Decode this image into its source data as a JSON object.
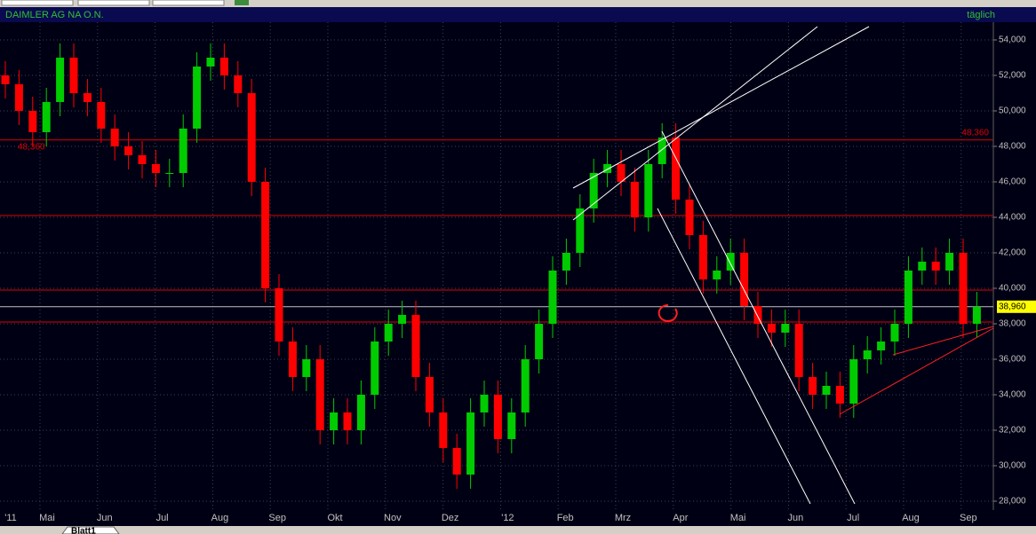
{
  "chart_data": {
    "type": "candlestick",
    "title": "DAIMLER AG NA O.N.",
    "subtitle": "täglich",
    "categories": [
      "'11",
      "Mai",
      "Jun",
      "Jul",
      "Aug",
      "Sep",
      "Okt",
      "Nov",
      "Dez",
      "'12",
      "Feb",
      "Mrz",
      "Apr",
      "Mai",
      "Jun",
      "Jul",
      "Aug",
      "Sep"
    ],
    "open": [
      52,
      51.5,
      50,
      48.8,
      50.5,
      53,
      51,
      50.5,
      49,
      48,
      47.5,
      47,
      46.5,
      46.5,
      49,
      52.5,
      53,
      52,
      51,
      46,
      40,
      37,
      35,
      36,
      32,
      33,
      32,
      34,
      37,
      38,
      38.5,
      35,
      33,
      31,
      29.5,
      33,
      34,
      31.5,
      33,
      36,
      38,
      41,
      42,
      44.5,
      46.5,
      47,
      46,
      44,
      47,
      48.5,
      45,
      43,
      40.5,
      41,
      42,
      39,
      38,
      37.5,
      38,
      35,
      34,
      34.5,
      33.5,
      36,
      36.5,
      37,
      38,
      41,
      41.5,
      41,
      42,
      38
    ],
    "high": [
      52.8,
      52.3,
      50.8,
      51.3,
      53.8,
      53.8,
      51.8,
      51.3,
      49.8,
      48.8,
      48.3,
      47.8,
      47.3,
      49.8,
      53.3,
      53.8,
      53.8,
      52.8,
      51.8,
      46.8,
      40.8,
      37.8,
      36.8,
      36.8,
      33.8,
      33.8,
      34.8,
      37.8,
      38.8,
      39.3,
      39.3,
      35.8,
      33.8,
      31.8,
      33.8,
      34.8,
      34.8,
      33.8,
      36.8,
      38.8,
      41.8,
      42.8,
      45.3,
      47.3,
      47.8,
      47.8,
      46.8,
      47.8,
      49.3,
      49.3,
      45.8,
      43.8,
      41.8,
      42.8,
      42.8,
      39.8,
      38.8,
      38.8,
      38.8,
      35.8,
      35.3,
      35.3,
      36.8,
      37.3,
      37.8,
      38.8,
      41.8,
      42.3,
      42.3,
      42.8,
      42.8,
      39.8
    ],
    "low": [
      50.7,
      49.2,
      48,
      48,
      49.7,
      50.2,
      49.7,
      48.2,
      47.2,
      46.7,
      46.2,
      45.7,
      45.7,
      45.7,
      48.2,
      51.7,
      51.2,
      50.2,
      45.2,
      39.2,
      36.2,
      34.2,
      34.2,
      31.2,
      31.2,
      31.2,
      31.2,
      33.2,
      36.2,
      37.2,
      34.2,
      32.2,
      30.2,
      28.7,
      28.7,
      32.2,
      30.7,
      30.7,
      32.2,
      35.2,
      37.2,
      40.2,
      41.2,
      43.7,
      45.7,
      45.2,
      43.2,
      43.2,
      46.2,
      44.2,
      42.2,
      39.7,
      39.7,
      40.2,
      38.2,
      37.2,
      36.7,
      36.7,
      34.2,
      33.2,
      33.2,
      32.7,
      32.7,
      35.2,
      35.7,
      36.2,
      37.2,
      40.2,
      40.2,
      40.2,
      37.2,
      37.2
    ],
    "close": [
      51.5,
      50,
      48.8,
      50.5,
      53,
      51,
      50.5,
      49,
      48,
      47.5,
      47,
      46.5,
      46.5,
      49,
      52.5,
      53,
      52,
      51,
      46,
      40,
      37,
      35,
      36,
      32,
      33,
      32,
      34,
      37,
      38,
      38.5,
      35,
      33,
      31,
      29.5,
      33,
      34,
      31.5,
      33,
      36,
      38,
      41,
      42,
      44.5,
      46.5,
      47,
      46,
      44,
      47,
      48.5,
      45,
      43,
      40.5,
      41,
      42,
      39,
      38,
      37.5,
      38,
      35,
      34,
      34.5,
      33.5,
      36,
      36.5,
      37,
      38,
      41,
      41.5,
      41,
      42,
      38,
      38.96
    ],
    "up_color": "#00cc00",
    "down_color": "#ff0000",
    "ylim": [
      27.5,
      55
    ],
    "yticks": [
      {
        "value": 28,
        "label": "28,000"
      },
      {
        "value": 30,
        "label": "30,000"
      },
      {
        "value": 32,
        "label": "32,000"
      },
      {
        "value": 34,
        "label": "34,000"
      },
      {
        "value": 36,
        "label": "36,000"
      },
      {
        "value": 38,
        "label": "38,000"
      },
      {
        "value": 40,
        "label": "40,000"
      },
      {
        "value": 42,
        "label": "42,000"
      },
      {
        "value": 44,
        "label": "44,000"
      },
      {
        "value": 46,
        "label": "46,000"
      },
      {
        "value": 48,
        "label": "48,000"
      },
      {
        "value": 50,
        "label": "50,000"
      },
      {
        "value": 52,
        "label": "52,000"
      },
      {
        "value": 54,
        "label": "54,000"
      }
    ],
    "grid": true,
    "reference_lines": [
      {
        "value": 48.36,
        "label": "48,360"
      },
      {
        "value": 44.1
      },
      {
        "value": 39.9
      },
      {
        "value": 38.1
      }
    ],
    "reference_color": "#e00000",
    "last_price": {
      "value": 38.96,
      "label": "38,960"
    },
    "sheet_tab": "Blatt1"
  }
}
